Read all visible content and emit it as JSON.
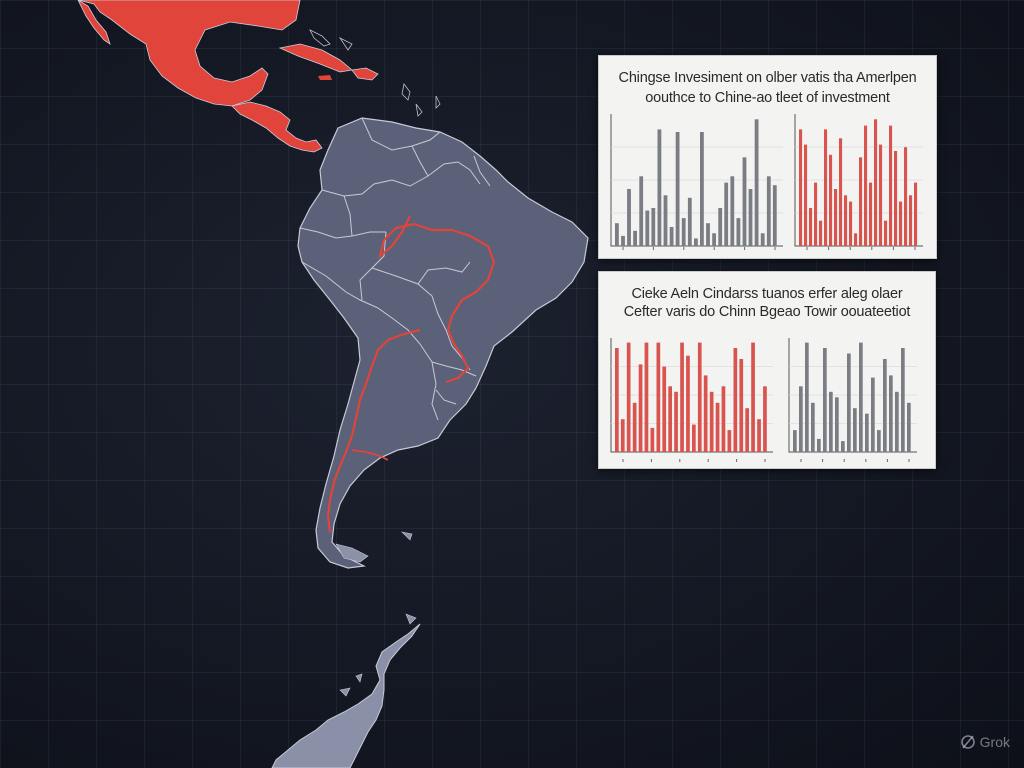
{
  "colors": {
    "background": "#141823",
    "land": "#5b6178",
    "land_border": "#c7cad6",
    "highlight": "#e0443b",
    "red_bar": "#d9534f",
    "gray_bar": "#7a7d84",
    "panel_bg": "#f3f3f1"
  },
  "map": {
    "regions": [
      {
        "name": "Mexico",
        "style": "highlight"
      },
      {
        "name": "Central America",
        "style": "highlight"
      },
      {
        "name": "Caribbean",
        "style": "highlight"
      },
      {
        "name": "South America",
        "style": "land"
      },
      {
        "name": "Antarctic Peninsula",
        "style": "land"
      }
    ],
    "routes": [
      {
        "name": "route-andes"
      },
      {
        "name": "route-amazon"
      }
    ]
  },
  "chart_data": [
    {
      "type": "bar",
      "title": "Chingse Invesiment on olber vatis tha Amerlpen",
      "subtitle": "oouthce to Chine-ao tleet of investment",
      "panels": [
        {
          "color": "gray",
          "values": [
            18,
            8,
            45,
            12,
            55,
            28,
            30,
            92,
            40,
            15,
            90,
            22,
            38,
            6,
            90,
            18,
            10,
            30,
            50,
            55,
            22,
            70,
            45,
            100,
            10,
            55,
            48
          ]
        },
        {
          "color": "red",
          "values": [
            92,
            80,
            30,
            50,
            20,
            92,
            72,
            45,
            85,
            40,
            35,
            10,
            70,
            95,
            50,
            100,
            80,
            20,
            95,
            75,
            35,
            78,
            40,
            50
          ]
        }
      ],
      "tick_labels": []
    },
    {
      "type": "bar",
      "title": "Cieke Aeln Cindarss tuanos erfer aleg olaer",
      "subtitle": "Cefter varis do Chinn Bgeao Towir oouateetiot",
      "panels": [
        {
          "color": "red",
          "values": [
            95,
            30,
            100,
            45,
            80,
            100,
            22,
            100,
            78,
            60,
            55,
            100,
            88,
            25,
            100,
            70,
            55,
            45,
            60,
            20,
            95,
            85,
            40,
            100,
            30,
            60
          ]
        },
        {
          "color": "gray",
          "values": [
            20,
            60,
            100,
            45,
            12,
            95,
            55,
            50,
            10,
            90,
            40,
            100,
            35,
            68,
            20,
            85,
            70,
            55,
            95,
            45
          ]
        }
      ],
      "tick_labels": []
    }
  ],
  "watermark": {
    "icon": "grok-logo-icon",
    "text": "Grok"
  }
}
